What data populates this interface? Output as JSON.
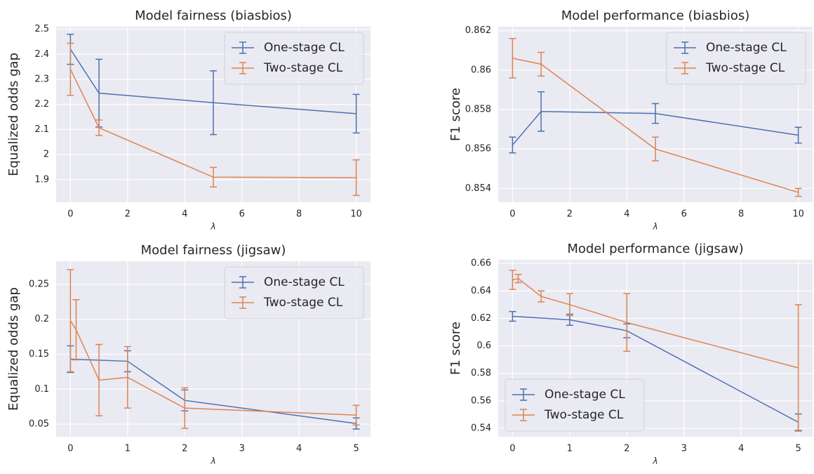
{
  "chart_data": [
    {
      "type": "line",
      "title": "Model fairness (biasbios)",
      "x_label": "λ",
      "y_label": "Equalized odds gap",
      "xlim": [
        -0.5,
        10.5
      ],
      "xticks": [
        0,
        2,
        4,
        6,
        8,
        10
      ],
      "ylim": [
        1.81,
        2.51
      ],
      "yticks": [
        1.9,
        2.0,
        2.1,
        2.2,
        2.3,
        2.4,
        2.5
      ],
      "grid": true,
      "legend": "upper right",
      "series": [
        {
          "name": "One-stage CL",
          "color": "#4c72b0",
          "x": [
            0,
            1,
            5,
            10
          ],
          "values": [
            2.42,
            2.245,
            2.207,
            2.163
          ],
          "errors": [
            0.06,
            0.135,
            0.127,
            0.077
          ]
        },
        {
          "name": "Two-stage CL",
          "color": "#dd8452",
          "x": [
            0,
            1,
            5,
            10
          ],
          "values": [
            2.34,
            2.107,
            1.91,
            1.908
          ],
          "errors": [
            0.104,
            0.031,
            0.039,
            0.071
          ]
        }
      ]
    },
    {
      "type": "line",
      "title": "Model performance (biasbios)",
      "x_label": "λ",
      "y_label": "F1 score",
      "xlim": [
        -0.5,
        10.5
      ],
      "xticks": [
        0,
        2,
        4,
        6,
        8,
        10
      ],
      "ylim": [
        0.8533,
        0.8622
      ],
      "yticks": [
        0.854,
        0.856,
        0.858,
        0.86,
        0.862
      ],
      "grid": true,
      "legend": "upper right",
      "series": [
        {
          "name": "One-stage CL",
          "color": "#4c72b0",
          "x": [
            0,
            1,
            5,
            10
          ],
          "values": [
            0.8562,
            0.8579,
            0.8578,
            0.8567
          ],
          "errors": [
            0.0004,
            0.001,
            0.0005,
            0.0004
          ]
        },
        {
          "name": "Two-stage CL",
          "color": "#dd8452",
          "x": [
            0,
            1,
            5,
            10
          ],
          "values": [
            0.8606,
            0.8603,
            0.856,
            0.8538
          ],
          "errors": [
            0.001,
            0.0006,
            0.0006,
            0.0002
          ]
        }
      ]
    },
    {
      "type": "line",
      "title": "Model fairness (jigsaw)",
      "x_label": "λ",
      "y_label": "Equalized odds gap",
      "xlim": [
        -0.25,
        5.25
      ],
      "xticks": [
        0,
        1,
        2,
        3,
        4,
        5
      ],
      "ylim": [
        0.032,
        0.283
      ],
      "yticks": [
        0.05,
        0.1,
        0.15,
        0.2,
        0.25
      ],
      "grid": true,
      "legend": "upper right",
      "series": [
        {
          "name": "One-stage CL",
          "color": "#4c72b0",
          "x": [
            0,
            1,
            2,
            5
          ],
          "values": [
            0.143,
            0.14,
            0.084,
            0.051
          ],
          "errors": [
            0.019,
            0.015,
            0.015,
            0.008
          ]
        },
        {
          "name": "Two-stage CL",
          "color": "#dd8452",
          "x": [
            0,
            0.1,
            0.5,
            1,
            2,
            5
          ],
          "values": [
            0.198,
            0.185,
            0.113,
            0.117,
            0.073,
            0.063
          ],
          "errors": [
            0.073,
            0.043,
            0.051,
            0.044,
            0.029,
            0.014
          ]
        }
      ]
    },
    {
      "type": "line",
      "title": "Model performance (jigsaw)",
      "x_label": "λ",
      "y_label": "F1 score",
      "xlim": [
        -0.25,
        5.25
      ],
      "xticks": [
        0,
        1,
        2,
        3,
        4,
        5
      ],
      "ylim": [
        0.5339,
        0.6626
      ],
      "yticks": [
        0.54,
        0.56,
        0.58,
        0.6,
        0.62,
        0.64,
        0.66
      ],
      "grid": true,
      "legend": "lower left",
      "series": [
        {
          "name": "One-stage CL",
          "color": "#4c72b0",
          "x": [
            0,
            1,
            2,
            5
          ],
          "values": [
            0.6215,
            0.619,
            0.611,
            0.5445
          ],
          "errors": [
            0.0035,
            0.004,
            0.005,
            0.006
          ]
        },
        {
          "name": "Two-stage CL",
          "color": "#dd8452",
          "x": [
            0,
            0.1,
            0.5,
            1,
            2,
            5
          ],
          "values": [
            0.648,
            0.649,
            0.636,
            0.63,
            0.617,
            0.584
          ],
          "errors": [
            0.007,
            0.003,
            0.004,
            0.008,
            0.021,
            0.046
          ]
        }
      ]
    }
  ]
}
